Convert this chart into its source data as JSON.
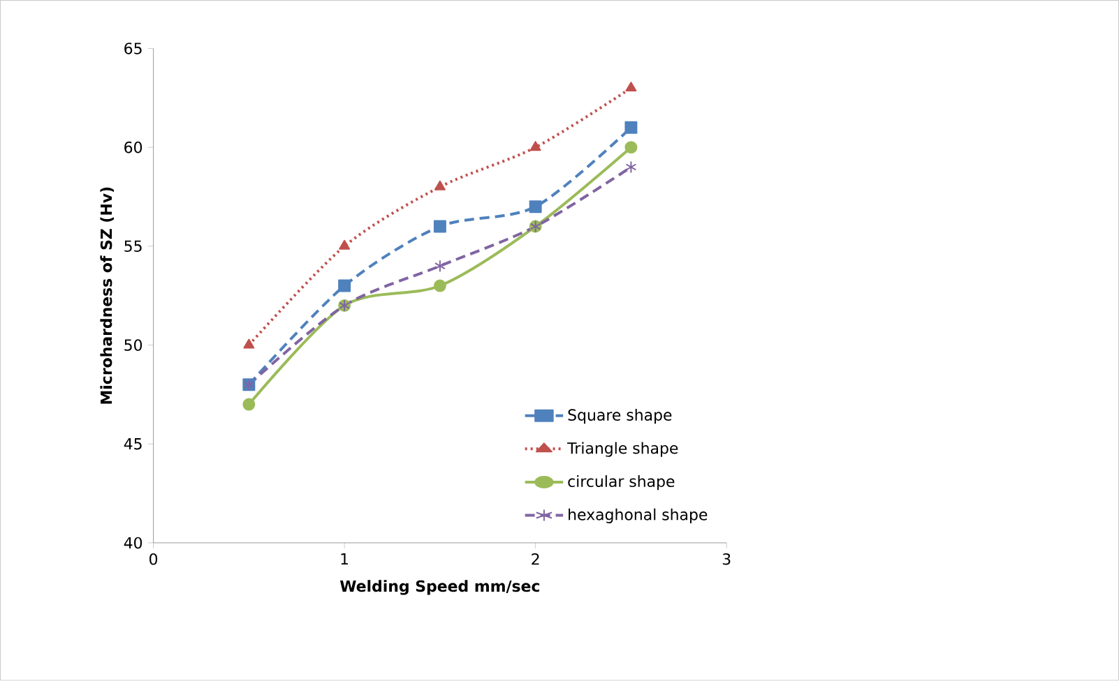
{
  "chart_data": {
    "type": "line",
    "xlabel": "Welding Speed mm/sec",
    "ylabel": "Microhardness of SZ (Hv)",
    "x": [
      0.5,
      1,
      1.5,
      2,
      2.5
    ],
    "series": [
      {
        "name": "Square shape",
        "color": "#4f81bd",
        "line_style": "dashed",
        "marker": "square",
        "values": [
          48,
          53,
          56,
          57,
          61
        ]
      },
      {
        "name": "Triangle shape",
        "color": "#c0504d",
        "line_style": "dotted",
        "marker": "triangle",
        "values": [
          50,
          55,
          58,
          60,
          63
        ]
      },
      {
        "name": "circular shape",
        "color": "#9bbb59",
        "line_style": "solid",
        "marker": "circle",
        "values": [
          47,
          52,
          53,
          56,
          60
        ]
      },
      {
        "name": "hexaghonal shape",
        "color": "#8064a2",
        "line_style": "dashed",
        "marker": "cross",
        "values": [
          48,
          52,
          54,
          56,
          59
        ]
      }
    ],
    "xlim": [
      0,
      3
    ],
    "xticks": [
      0,
      1,
      2,
      3
    ],
    "ylim": [
      40,
      65
    ],
    "yticks": [
      40,
      45,
      50,
      55,
      60,
      65
    ],
    "grid": false,
    "legend": "bottom right"
  }
}
